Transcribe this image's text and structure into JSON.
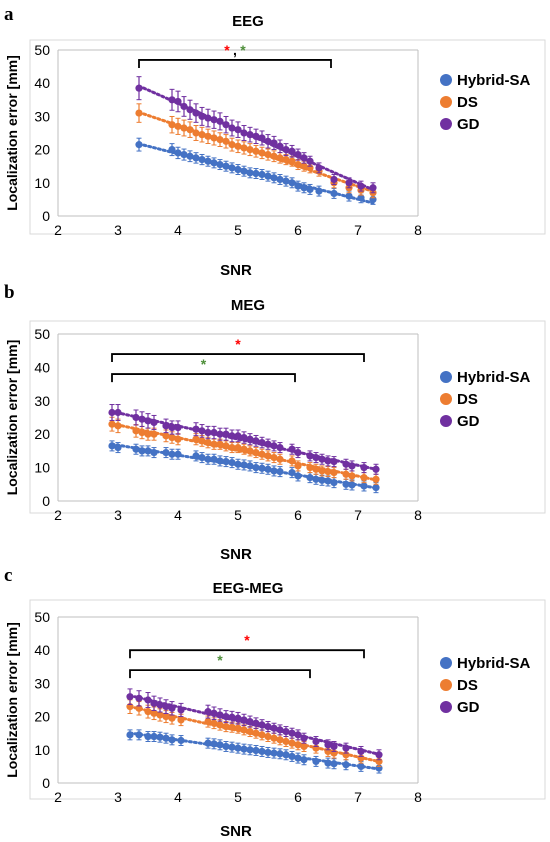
{
  "colors": {
    "Hybrid-SA": "#4472c4",
    "DS": "#ed7d31",
    "GD": "#7030a0",
    "red_star": "#ff0000",
    "green_star": "#4e8f3a"
  },
  "chart_data": [
    {
      "type": "scatter",
      "panel_label": "a",
      "title": "EEG",
      "xlabel": "SNR",
      "ylabel": "Localization error [mm]",
      "xlim": [
        2,
        8
      ],
      "ylim": [
        0,
        50
      ],
      "xticks": [
        2,
        3,
        4,
        5,
        6,
        7,
        8
      ],
      "yticks": [
        0,
        10,
        20,
        30,
        40,
        50
      ],
      "legend": [
        "Hybrid-SA",
        "DS",
        "GD"
      ],
      "legend_placement": "right",
      "trendline": "dotted",
      "x": [
        3.35,
        3.9,
        4.0,
        4.1,
        4.2,
        4.3,
        4.4,
        4.5,
        4.6,
        4.7,
        4.8,
        4.9,
        5.0,
        5.1,
        5.2,
        5.3,
        5.4,
        5.5,
        5.6,
        5.7,
        5.8,
        5.9,
        6.0,
        6.1,
        6.2,
        6.35,
        6.6,
        6.85,
        7.05,
        7.25
      ],
      "series": [
        {
          "name": "Hybrid-SA",
          "values": [
            21.5,
            20.0,
            19.0,
            18.5,
            18.0,
            17.5,
            17.0,
            16.5,
            16.0,
            15.5,
            15.0,
            14.5,
            14.0,
            13.5,
            13.0,
            12.8,
            12.5,
            12.0,
            11.5,
            11.0,
            10.5,
            10.0,
            9.0,
            8.5,
            8.0,
            7.5,
            6.8,
            6.0,
            5.5,
            5.0
          ]
        },
        {
          "name": "DS",
          "values": [
            31.0,
            27.5,
            27.0,
            26.5,
            26.0,
            25.0,
            24.5,
            24.0,
            23.5,
            23.0,
            22.5,
            21.5,
            21.0,
            20.5,
            20.0,
            19.5,
            19.0,
            18.5,
            18.0,
            17.5,
            17.0,
            16.5,
            15.5,
            15.0,
            14.5,
            13.5,
            10.0,
            8.5,
            7.8,
            7.0
          ]
        },
        {
          "name": "GD",
          "values": [
            38.5,
            35.0,
            34.5,
            33.0,
            32.0,
            31.0,
            30.0,
            29.5,
            29.0,
            28.5,
            27.5,
            26.5,
            26.0,
            25.0,
            24.5,
            24.0,
            23.5,
            22.5,
            22.0,
            21.0,
            20.0,
            19.5,
            18.5,
            17.5,
            16.5,
            14.5,
            11.0,
            10.0,
            9.0,
            8.5
          ]
        }
      ],
      "significance": [
        {
          "x_start": 3.35,
          "x_end": 6.55,
          "y": 47,
          "marks": [
            "*",
            ",",
            "*"
          ],
          "mark_colors": [
            "red",
            "black",
            "green"
          ]
        }
      ]
    },
    {
      "type": "scatter",
      "panel_label": "b",
      "title": "MEG",
      "xlabel": "SNR",
      "ylabel": "Localization error [mm]",
      "xlim": [
        2,
        8
      ],
      "ylim": [
        0,
        50
      ],
      "xticks": [
        2,
        3,
        4,
        5,
        6,
        7,
        8
      ],
      "yticks": [
        0,
        10,
        20,
        30,
        40,
        50
      ],
      "legend": [
        "Hybrid-SA",
        "DS",
        "GD"
      ],
      "legend_placement": "right",
      "trendline": "dotted",
      "x": [
        2.9,
        3.0,
        3.3,
        3.4,
        3.5,
        3.6,
        3.8,
        3.9,
        4.0,
        4.3,
        4.4,
        4.5,
        4.6,
        4.7,
        4.8,
        4.9,
        5.0,
        5.1,
        5.2,
        5.3,
        5.4,
        5.5,
        5.6,
        5.7,
        5.9,
        6.0,
        6.2,
        6.3,
        6.4,
        6.5,
        6.6,
        6.8,
        6.9,
        7.1,
        7.3
      ],
      "series": [
        {
          "name": "Hybrid-SA",
          "values": [
            16.5,
            16.0,
            15.5,
            15.0,
            15.0,
            14.5,
            14.5,
            14.0,
            14.0,
            13.5,
            13.0,
            12.5,
            12.5,
            12.0,
            11.8,
            11.5,
            11.0,
            10.8,
            10.5,
            10.0,
            9.8,
            9.5,
            9.0,
            8.8,
            8.5,
            7.5,
            7.0,
            6.5,
            6.2,
            6.0,
            5.5,
            5.0,
            4.8,
            4.5,
            4.0
          ]
        },
        {
          "name": "DS",
          "values": [
            23.0,
            22.5,
            21.0,
            20.5,
            20.0,
            20.0,
            19.5,
            19.0,
            18.5,
            18.5,
            18.0,
            17.5,
            17.0,
            17.0,
            16.5,
            16.0,
            16.0,
            15.5,
            15.0,
            14.5,
            14.0,
            13.5,
            13.0,
            12.5,
            12.0,
            10.5,
            10.0,
            9.5,
            9.0,
            8.8,
            8.5,
            8.0,
            7.5,
            7.0,
            6.5
          ]
        },
        {
          "name": "GD",
          "values": [
            26.5,
            26.5,
            25.0,
            24.5,
            24.0,
            23.5,
            22.5,
            22.0,
            22.0,
            21.5,
            21.0,
            20.5,
            20.5,
            20.0,
            20.0,
            19.5,
            19.5,
            19.0,
            18.5,
            18.0,
            17.5,
            17.0,
            16.5,
            16.0,
            15.5,
            14.5,
            13.5,
            13.0,
            12.5,
            12.0,
            11.8,
            11.0,
            10.5,
            10.0,
            9.5
          ]
        }
      ],
      "significance": [
        {
          "x_start": 2.9,
          "x_end": 7.1,
          "y": 44,
          "marks": [
            "*"
          ],
          "mark_colors": [
            "red"
          ]
        },
        {
          "x_start": 2.9,
          "x_end": 5.95,
          "y": 38,
          "marks": [
            "*"
          ],
          "mark_colors": [
            "green"
          ]
        }
      ]
    },
    {
      "type": "scatter",
      "panel_label": "c",
      "title": "EEG-MEG",
      "xlabel": "SNR",
      "ylabel": "Localization error [mm]",
      "xlim": [
        2,
        8
      ],
      "ylim": [
        0,
        50
      ],
      "xticks": [
        2,
        3,
        4,
        5,
        6,
        7,
        8
      ],
      "yticks": [
        0,
        10,
        20,
        30,
        40,
        50
      ],
      "legend": [
        "Hybrid-SA",
        "DS",
        "GD"
      ],
      "legend_placement": "right",
      "trendline": "dotted",
      "x": [
        3.2,
        3.35,
        3.5,
        3.6,
        3.7,
        3.8,
        3.9,
        4.05,
        4.5,
        4.6,
        4.7,
        4.8,
        4.9,
        5.0,
        5.1,
        5.2,
        5.3,
        5.4,
        5.5,
        5.6,
        5.7,
        5.8,
        5.9,
        6.0,
        6.1,
        6.3,
        6.5,
        6.6,
        6.8,
        7.05,
        7.35
      ],
      "series": [
        {
          "name": "Hybrid-SA",
          "values": [
            14.5,
            14.5,
            14.0,
            14.0,
            13.8,
            13.5,
            13.0,
            12.8,
            12.0,
            11.8,
            11.5,
            11.0,
            10.8,
            10.5,
            10.2,
            10.0,
            9.8,
            9.5,
            9.2,
            9.0,
            8.8,
            8.5,
            8.0,
            7.5,
            7.0,
            6.5,
            6.0,
            5.8,
            5.5,
            5.0,
            4.5
          ]
        },
        {
          "name": "DS",
          "values": [
            23.0,
            22.5,
            21.5,
            21.0,
            20.5,
            20.0,
            19.5,
            19.0,
            18.5,
            18.0,
            17.5,
            17.0,
            16.8,
            16.5,
            16.0,
            15.5,
            15.0,
            14.5,
            14.0,
            13.5,
            13.0,
            12.5,
            12.0,
            11.5,
            11.0,
            10.5,
            9.5,
            9.0,
            8.5,
            7.5,
            6.5
          ]
        },
        {
          "name": "GD",
          "values": [
            26.0,
            25.5,
            25.0,
            24.0,
            23.5,
            23.0,
            22.5,
            22.0,
            21.5,
            21.0,
            20.5,
            20.0,
            19.8,
            19.5,
            19.0,
            18.5,
            18.0,
            17.5,
            17.0,
            16.5,
            16.0,
            15.5,
            15.0,
            14.5,
            13.5,
            12.5,
            11.5,
            11.0,
            10.5,
            9.5,
            8.5
          ]
        }
      ],
      "significance": [
        {
          "x_start": 3.2,
          "x_end": 7.1,
          "y": 40,
          "marks": [
            "*"
          ],
          "mark_colors": [
            "red"
          ]
        },
        {
          "x_start": 3.2,
          "x_end": 6.2,
          "y": 34,
          "marks": [
            "*"
          ],
          "mark_colors": [
            "green"
          ]
        }
      ]
    }
  ]
}
